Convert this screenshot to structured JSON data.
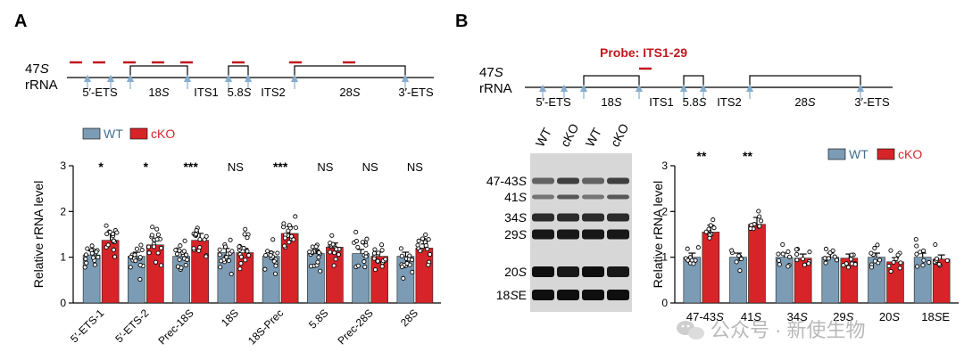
{
  "colors": {
    "wt": "#7c9cb5",
    "cko": "#d62429",
    "probe": "#c1161d",
    "arrow": "#86aed0",
    "axis": "#000000",
    "wt_text": "#3f6f8f",
    "cko_text": "#d62429"
  },
  "panel_a": {
    "letter": "A",
    "diagram": {
      "label_line1": "47S",
      "label_line2": "rRNA",
      "regions": [
        "5′-ETS",
        "18S",
        "ITS1",
        "5.8S",
        "ITS2",
        "28S",
        "3′-ETS"
      ]
    },
    "legend": {
      "wt": "WT",
      "cko": "cKO"
    }
  },
  "panel_b": {
    "letter": "B",
    "probe_label": "Probe: ITS1-29",
    "diagram": {
      "label_line1": "47S",
      "label_line2": "rRNA",
      "regions": [
        "5′-ETS",
        "18S",
        "ITS1",
        "5.8S",
        "ITS2",
        "28S",
        "3′-ETS"
      ]
    },
    "blot": {
      "lanes": [
        "WT",
        "cKO",
        "WT",
        "cKO"
      ],
      "bands": [
        "47-43S",
        "41S",
        "34S",
        "29S",
        "20S",
        "18SE"
      ]
    },
    "legend": {
      "wt": "WT",
      "cko": "cKO"
    }
  },
  "watermark": {
    "text": "公众号 · 新使生物",
    "icon": "wechat-icon"
  },
  "chart_data": [
    {
      "type": "bar",
      "panel": "A",
      "ylabel": "Relative rRNA level",
      "ylim": [
        0,
        3
      ],
      "yticks": [
        0,
        1,
        2,
        3
      ],
      "categories": [
        "5′-ETS-1",
        "5′-ETS-2",
        "Prec-18S",
        "18S",
        "18S-Prec",
        "5.8S",
        "Prec-28S",
        "28S"
      ],
      "series": [
        {
          "name": "WT",
          "values": [
            1.05,
            1.02,
            1.02,
            1.1,
            1.02,
            1.08,
            1.08,
            1.02
          ]
        },
        {
          "name": "cKO",
          "values": [
            1.37,
            1.27,
            1.37,
            1.1,
            1.52,
            1.22,
            1.02,
            1.2
          ]
        }
      ],
      "significance": [
        "*",
        "*",
        "***",
        "NS",
        "***",
        "NS",
        "NS",
        "NS"
      ]
    },
    {
      "type": "bar",
      "panel": "B",
      "ylabel": "Relative rRNA level",
      "ylim": [
        0,
        3
      ],
      "yticks": [
        0,
        1,
        2,
        3
      ],
      "categories": [
        "47-43S",
        "41S",
        "34S",
        "29S",
        "20S",
        "18SE"
      ],
      "series": [
        {
          "name": "WT",
          "values": [
            1.0,
            1.0,
            1.0,
            1.0,
            1.0,
            1.0
          ]
        },
        {
          "name": "cKO",
          "values": [
            1.55,
            1.72,
            0.98,
            0.98,
            0.9,
            0.96
          ]
        }
      ],
      "significance": [
        "**",
        "**",
        "",
        "",
        "",
        ""
      ]
    }
  ]
}
